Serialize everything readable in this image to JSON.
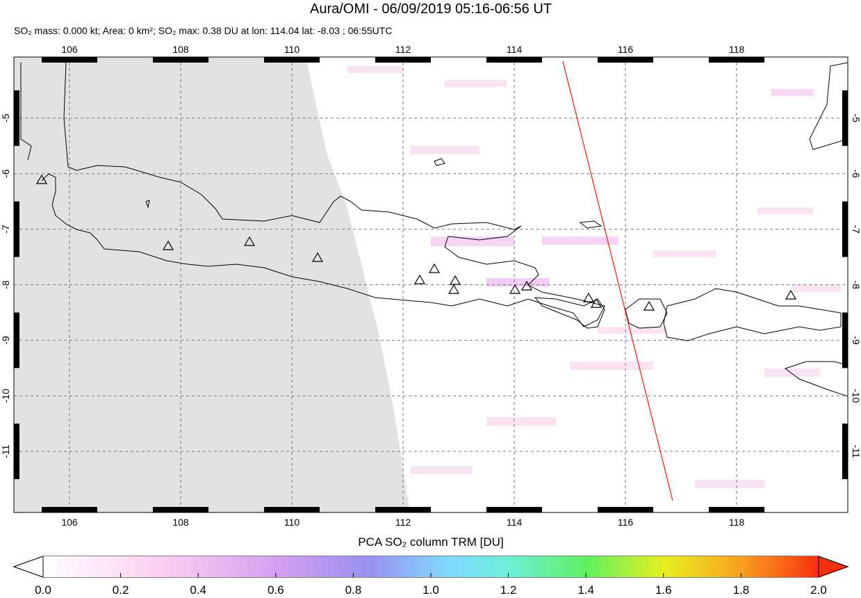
{
  "title": "Aura/OMI - 06/09/2019 05:16-06:56 UT",
  "subtitle": "SO₂ mass: 0.000 kt; Area: 0 km²; SO₂ max: 0.38 DU at lon: 114.04 lat: -8.03 ; 06:55UTC",
  "map": {
    "xlim": [
      105,
      120
    ],
    "ylim": [
      -12.1,
      -3.9
    ],
    "xticks": [
      106,
      108,
      110,
      112,
      114,
      116,
      118
    ],
    "yticks": [
      -5,
      -6,
      -7,
      -8,
      -9,
      -10,
      -11
    ]
  },
  "colorbar": {
    "label": "PCA SO₂ column TRM [DU]",
    "lim": [
      0,
      2
    ],
    "ticks": [
      {
        "value": 0,
        "label": "0.0"
      },
      {
        "value": 0.2,
        "label": "0.2"
      },
      {
        "value": 0.4,
        "label": "0.4"
      },
      {
        "value": 0.6,
        "label": "0.6"
      },
      {
        "value": 0.8,
        "label": "0.8"
      },
      {
        "value": 1,
        "label": "1.0"
      },
      {
        "value": 1.2,
        "label": "1.2"
      },
      {
        "value": 1.4,
        "label": "1.4"
      },
      {
        "value": 1.6,
        "label": "1.6"
      },
      {
        "value": 1.8,
        "label": "1.8"
      },
      {
        "value": 2,
        "label": "2.0"
      }
    ]
  }
}
